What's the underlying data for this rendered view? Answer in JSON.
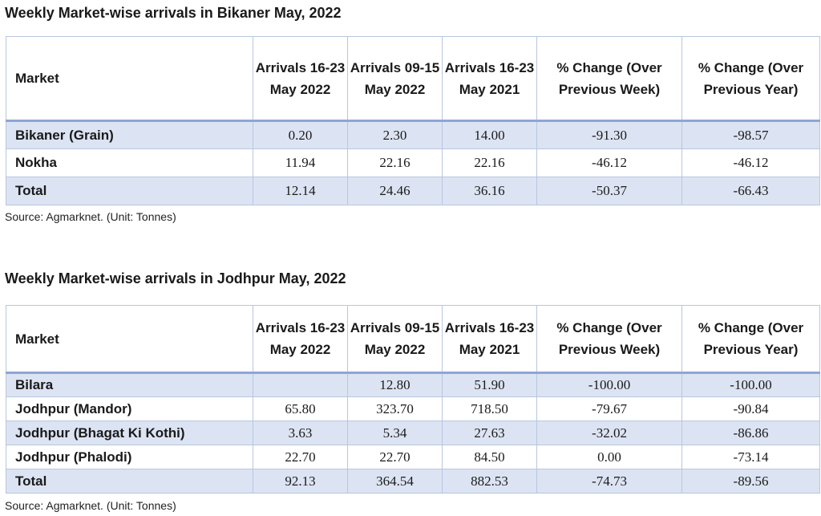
{
  "tables": [
    {
      "title": "Weekly Market-wise arrivals in Bikaner May, 2022",
      "headers": [
        "Market",
        "Arrivals 16-23 May 2022",
        "Arrivals 09-15 May 2022",
        "Arrivals 16-23 May 2021",
        "% Change (Over Previous Week)",
        "% Change (Over Previous Year)"
      ],
      "rows": [
        [
          "Bikaner (Grain)",
          "0.20",
          "2.30",
          "14.00",
          "-91.30",
          "-98.57"
        ],
        [
          "Nokha",
          "11.94",
          "22.16",
          "22.16",
          "-46.12",
          "-46.12"
        ],
        [
          "Total",
          "12.14",
          "24.46",
          "36.16",
          "-50.37",
          "-66.43"
        ]
      ],
      "source": "Source: Agmarknet. (Unit: Tonnes)"
    },
    {
      "title": "Weekly Market-wise arrivals in Jodhpur May, 2022",
      "headers": [
        "Market",
        "Arrivals 16-23 May 2022",
        "Arrivals 09-15 May 2022",
        "Arrivals 16-23 May 2021",
        "% Change (Over Previous Week)",
        "% Change (Over Previous Year)"
      ],
      "rows": [
        [
          "Bilara",
          "",
          "12.80",
          "51.90",
          "-100.00",
          "-100.00"
        ],
        [
          "Jodhpur (Mandor)",
          "65.80",
          "323.70",
          "718.50",
          "-79.67",
          "-90.84"
        ],
        [
          "Jodhpur (Bhagat Ki Kothi)",
          "3.63",
          "5.34",
          "27.63",
          "-32.02",
          "-86.86"
        ],
        [
          "Jodhpur (Phalodi)",
          "22.70",
          "22.70",
          "84.50",
          "0.00",
          "-73.14"
        ],
        [
          "Total",
          "92.13",
          "364.54",
          "882.53",
          "-74.73",
          "-89.56"
        ]
      ],
      "source": "Source: Agmarknet. (Unit: Tonnes)"
    }
  ]
}
